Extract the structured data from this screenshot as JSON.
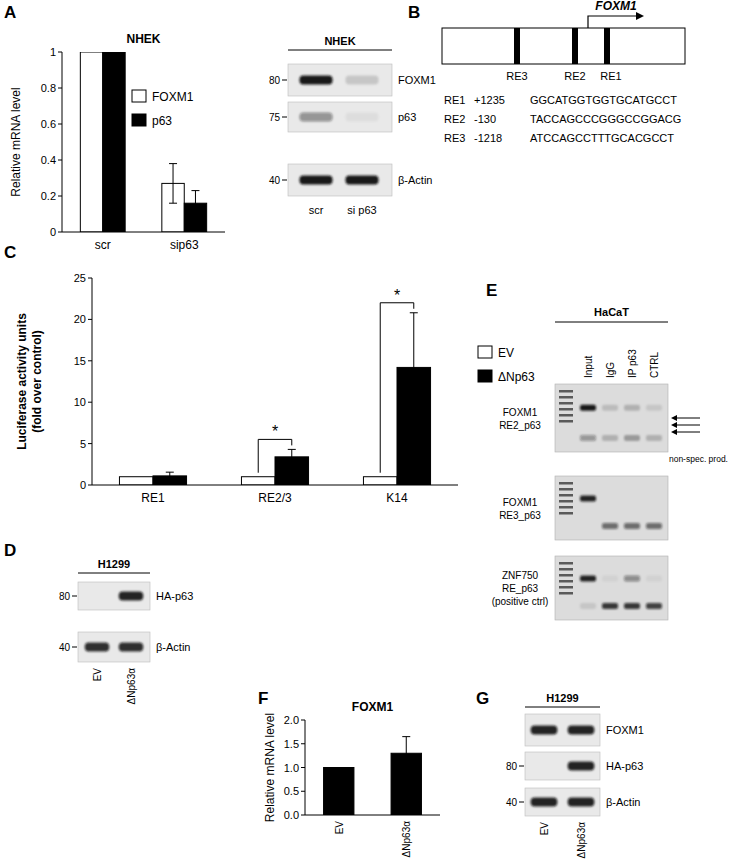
{
  "panel_labels": [
    "A",
    "B",
    "C",
    "D",
    "E",
    "F",
    "G"
  ],
  "chart_data": [
    {
      "type": "bar",
      "title": "NHEK",
      "ylabel": "Relative mRNA level",
      "categories": [
        "scr",
        "sip63"
      ],
      "series": [
        {
          "name": "FOXM1",
          "color": "#ffffff",
          "values": [
            1,
            0.27
          ],
          "errors": [
            0,
            0.11
          ]
        },
        {
          "name": "p63",
          "color": "#000000",
          "values": [
            1,
            0.16
          ],
          "errors": [
            0,
            0.07
          ]
        }
      ],
      "ylim": [
        0,
        1
      ],
      "yticks": [
        0,
        0.2,
        0.4,
        0.6,
        0.8,
        1
      ],
      "legend": "right",
      "grid": false
    },
    {
      "type": "bar",
      "ylabel": [
        "Luciferase activity units",
        "(fold over control)"
      ],
      "categories": [
        "RE1",
        "RE2/3",
        "K14"
      ],
      "series": [
        {
          "name": "EV",
          "color": "#ffffff",
          "values": [
            1,
            1,
            1
          ],
          "errors": [
            0,
            0,
            0
          ]
        },
        {
          "name": "ΔNp63",
          "color": "#000000",
          "values": [
            1.1,
            3.4,
            14.2
          ],
          "errors": [
            0.45,
            0.9,
            6.6
          ]
        }
      ],
      "ylim": [
        0,
        25
      ],
      "yticks": [
        0,
        5,
        10,
        15,
        20,
        25
      ],
      "legend": "right",
      "grid": false,
      "annotations": [
        {
          "text": "*",
          "category": "RE2/3"
        },
        {
          "text": "*",
          "category": "K14"
        }
      ]
    },
    {
      "type": "bar",
      "title": "FOXM1",
      "ylabel": "Relative mRNA level",
      "categories": [
        "EV",
        "ΔNp63α"
      ],
      "values": [
        1,
        1.3
      ],
      "errors": [
        0,
        0.35
      ],
      "color": "#000000",
      "ylim": [
        0,
        2
      ],
      "yticks": [
        {
          "value": 0,
          "label": "0.0"
        },
        {
          "value": 0.5,
          "label": "0.5"
        },
        {
          "value": 1,
          "label": "1.0"
        },
        {
          "value": 1.5,
          "label": "1.5"
        },
        {
          "value": 2,
          "label": "2.0"
        }
      ],
      "grid": false
    }
  ],
  "blots": [
    {
      "title": "NHEK",
      "lanes": [
        "scr",
        "si p63"
      ],
      "rows": [
        {
          "label": "FOXM1",
          "marker": 80,
          "intensity": [
            0.95,
            0.15
          ]
        },
        {
          "label": "p63",
          "marker": 75,
          "intensity": [
            0.4,
            0.05
          ]
        },
        {
          "label": "β-Actin",
          "marker": 40,
          "intensity": [
            0.95,
            0.95
          ]
        }
      ]
    },
    {
      "title": "H1299",
      "lanes": [
        "EV",
        "ΔNp63α"
      ],
      "rows": [
        {
          "label": "HA-p63",
          "marker": 80,
          "intensity": [
            0,
            0.9
          ]
        },
        {
          "label": "β-Actin",
          "marker": 40,
          "intensity": [
            0.85,
            0.85
          ]
        }
      ]
    },
    {
      "title": "H1299",
      "lanes": [
        "EV",
        "ΔNp63α"
      ],
      "rows": [
        {
          "label": "FOXM1",
          "intensity": [
            0.9,
            0.9
          ]
        },
        {
          "label": "HA-p63",
          "marker": 80,
          "intensity": [
            0,
            0.9
          ]
        },
        {
          "label": "β-Actin",
          "marker": 40,
          "intensity": [
            0.9,
            0.9
          ]
        }
      ]
    }
  ],
  "diagram": {
    "gene": "FOXM1",
    "elements": [
      "RE3",
      "RE2",
      "RE1"
    ],
    "table": [
      [
        "RE1",
        "+1235",
        "GGCATGGTGGTGCATGCCT"
      ],
      [
        "RE2",
        "-130",
        "TACCAGCCCGGGCCGGACG"
      ],
      [
        "RE3",
        "-1218",
        "ATCCAGCCTTTGCACGCCT"
      ]
    ]
  },
  "gel": {
    "title": "HaCaT",
    "lanes": [
      "Input",
      "IgG",
      "IP p63",
      "CTRL"
    ],
    "rows": [
      {
        "label": [
          "FOXM1",
          "RE2_p63"
        ],
        "bands": [
          0.95,
          0.15,
          0.2,
          0.1
        ],
        "low_bands": [
          0.35,
          0.2,
          0.3,
          0.2
        ]
      },
      {
        "label": [
          "FOXM1",
          "RE3_p63"
        ],
        "bands": [
          0.9,
          0,
          0,
          0
        ],
        "low_bands": [
          0,
          0.55,
          0.55,
          0.55
        ]
      },
      {
        "label": [
          "ZNF750",
          "RE_p63",
          "(positive ctrl)"
        ],
        "bands": [
          0.9,
          0.05,
          0.4,
          0.05
        ],
        "low_bands": [
          0.1,
          0.8,
          0.8,
          0.75
        ]
      }
    ],
    "annotation": "non-spec. prod."
  }
}
